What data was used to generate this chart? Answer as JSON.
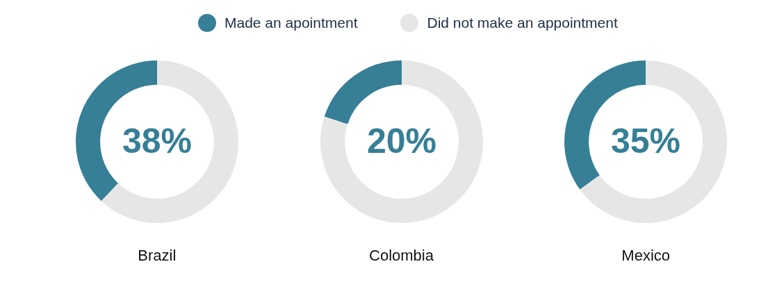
{
  "chart_data": {
    "type": "donut",
    "categories": [
      "Made an apointment",
      "Did not make an appointment"
    ],
    "colors": [
      "#367f96",
      "#e6e6e6"
    ],
    "legend": "top",
    "series": [
      {
        "name": "Brazil",
        "values": [
          38,
          62
        ],
        "value_labels": [
          "38%",
          null
        ]
      },
      {
        "name": "Colombia",
        "values": [
          20,
          80
        ],
        "value_labels": [
          "20%",
          null
        ]
      },
      {
        "name": "Mexico",
        "values": [
          35,
          65
        ],
        "value_labels": [
          "35%",
          null
        ]
      }
    ]
  }
}
